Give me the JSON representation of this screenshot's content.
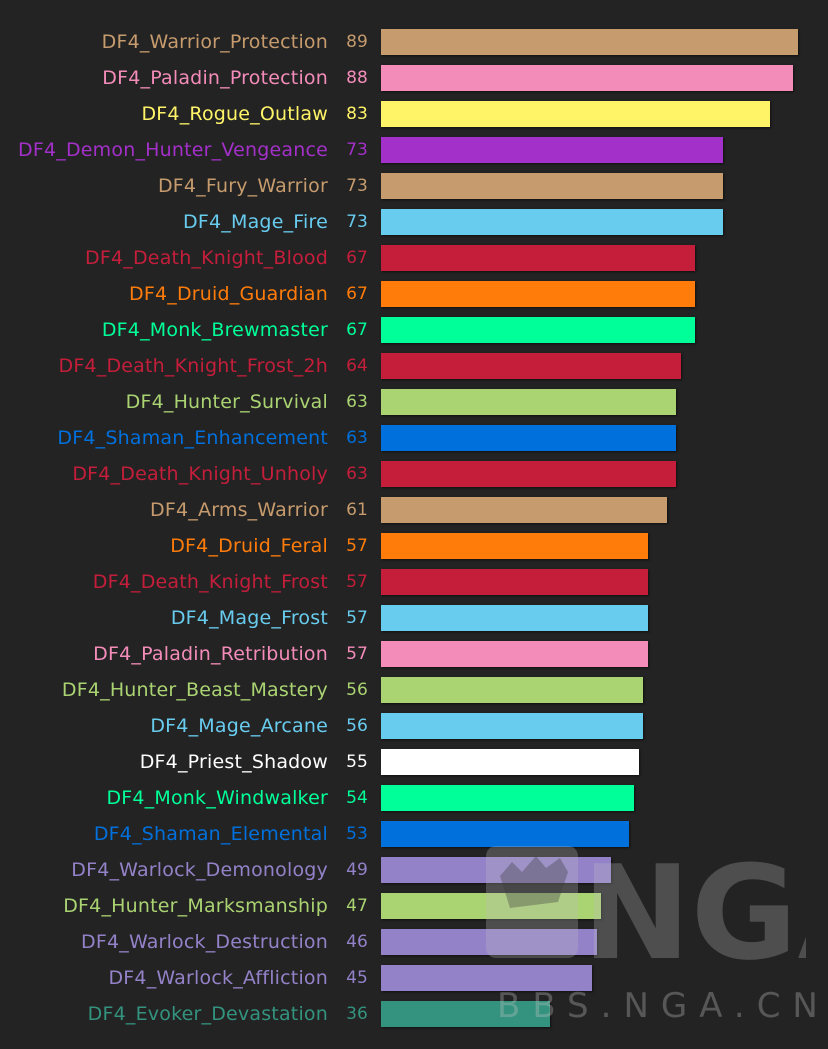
{
  "chart_data": {
    "type": "bar",
    "orientation": "horizontal",
    "categories": [
      "DF4_Warrior_Protection",
      "DF4_Paladin_Protection",
      "DF4_Rogue_Outlaw",
      "DF4_Demon_Hunter_Vengeance",
      "DF4_Fury_Warrior",
      "DF4_Mage_Fire",
      "DF4_Death_Knight_Blood",
      "DF4_Druid_Guardian",
      "DF4_Monk_Brewmaster",
      "DF4_Death_Knight_Frost_2h",
      "DF4_Hunter_Survival",
      "DF4_Shaman_Enhancement",
      "DF4_Death_Knight_Unholy",
      "DF4_Arms_Warrior",
      "DF4_Druid_Feral",
      "DF4_Death_Knight_Frost",
      "DF4_Mage_Frost",
      "DF4_Paladin_Retribution",
      "DF4_Hunter_Beast_Mastery",
      "DF4_Mage_Arcane",
      "DF4_Priest_Shadow",
      "DF4_Monk_Windwalker",
      "DF4_Shaman_Elemental",
      "DF4_Warlock_Demonology",
      "DF4_Hunter_Marksmanship",
      "DF4_Warlock_Destruction",
      "DF4_Warlock_Affliction",
      "DF4_Evoker_Devastation"
    ],
    "values": [
      89,
      88,
      83,
      73,
      73,
      73,
      67,
      67,
      67,
      64,
      63,
      63,
      63,
      61,
      57,
      57,
      57,
      57,
      56,
      56,
      55,
      54,
      53,
      49,
      47,
      46,
      45,
      36
    ],
    "colors": [
      "#c69b6d",
      "#f48cba",
      "#fff468",
      "#a330c9",
      "#c69b6d",
      "#68ccef",
      "#c41e3b",
      "#ff7c0a",
      "#00ff98",
      "#c41e3b",
      "#aad372",
      "#0070dd",
      "#c41e3b",
      "#c69b6d",
      "#ff7c0a",
      "#c41e3b",
      "#68ccef",
      "#f48cba",
      "#aad372",
      "#68ccef",
      "#ffffff",
      "#00ff98",
      "#0070dd",
      "#9482c9",
      "#aad372",
      "#9482c9",
      "#9482c9",
      "#33937f"
    ],
    "xlim": [
      0,
      89
    ],
    "grid": false,
    "legend": "none",
    "title": "",
    "xlabel": "",
    "ylabel": ""
  },
  "watermark": {
    "logo_text": "NGA",
    "site_text": "BBS.NGA.CN"
  },
  "background_color": "#232323"
}
